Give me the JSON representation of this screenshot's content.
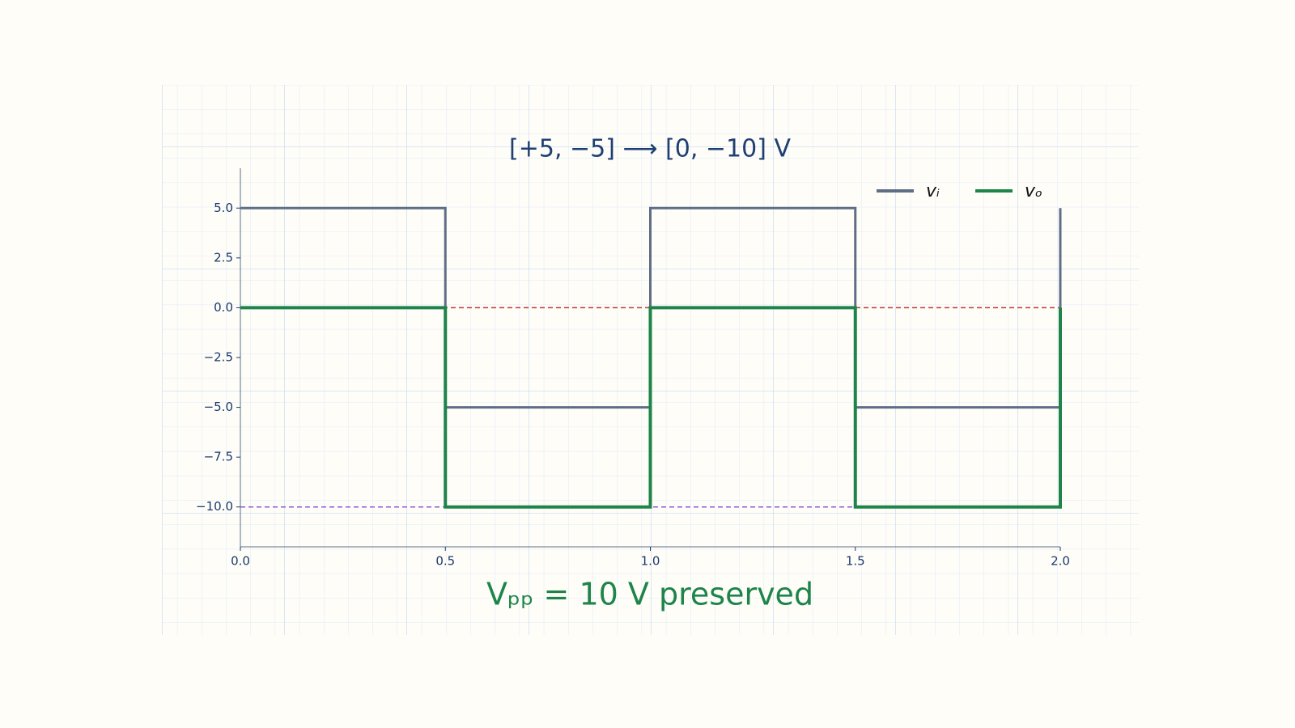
{
  "chart_data": {
    "type": "line",
    "title": "[+5, −5] ⟶ [0, −10] V",
    "annotation": "Vₚₚ = 10 V   preserved",
    "x": [
      0,
      0.5,
      0.5,
      1,
      1,
      1.5,
      1.5,
      2,
      2
    ],
    "series": [
      {
        "name": "vᵢ",
        "color": "#5f6e86",
        "values": [
          5,
          5,
          -5,
          -5,
          5,
          5,
          -5,
          -5,
          5
        ]
      },
      {
        "name": "vₒ",
        "color": "#1e8449",
        "values": [
          0,
          0,
          -10,
          -10,
          0,
          0,
          -10,
          -10,
          0
        ]
      }
    ],
    "reference_lines": [
      {
        "value": 0,
        "color": "#c0392b"
      },
      {
        "value": -10,
        "color": "#8a5cd6"
      }
    ],
    "xlim": [
      0,
      2
    ],
    "xticks": [
      {
        "value": 0,
        "label": "0.0"
      },
      {
        "value": 0.5,
        "label": "0.5"
      },
      {
        "value": 1,
        "label": "1.0"
      },
      {
        "value": 1.5,
        "label": "1.5"
      },
      {
        "value": 2,
        "label": "2.0"
      }
    ],
    "ylim": [
      -12,
      7
    ],
    "yticks": [
      {
        "value": 5,
        "label": "5.0"
      },
      {
        "value": 2.5,
        "label": "2.5"
      },
      {
        "value": 0,
        "label": "0.0"
      },
      {
        "value": -2.5,
        "label": "−2.5"
      },
      {
        "value": -5,
        "label": "−5.0"
      },
      {
        "value": -7.5,
        "label": "−7.5"
      },
      {
        "value": -10,
        "label": "−10.0"
      }
    ],
    "legend": "upper right"
  }
}
